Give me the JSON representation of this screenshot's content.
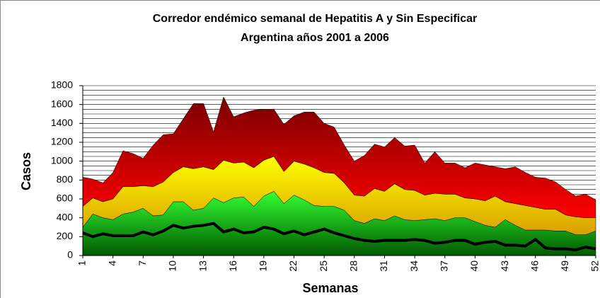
{
  "chart_data": {
    "type": "area",
    "title": "Corredor endémico semanal de Hepatitis A y Sin Especificar",
    "subtitle": "Argentina años 2001 a 2006",
    "y_label": "Casos",
    "x_label": "Semanas",
    "x": [
      1,
      2,
      3,
      4,
      5,
      6,
      7,
      8,
      9,
      10,
      11,
      12,
      13,
      14,
      15,
      16,
      17,
      18,
      19,
      20,
      21,
      22,
      23,
      24,
      25,
      26,
      27,
      28,
      29,
      30,
      31,
      32,
      33,
      34,
      35,
      36,
      37,
      38,
      39,
      40,
      41,
      42,
      43,
      44,
      45,
      46,
      47,
      48,
      49,
      50,
      51,
      52
    ],
    "xlim": [
      1,
      52
    ],
    "xticks": [
      1,
      4,
      7,
      10,
      13,
      16,
      19,
      22,
      25,
      28,
      31,
      34,
      37,
      40,
      43,
      46,
      49,
      52
    ],
    "ylim": [
      0,
      1800
    ],
    "yticks": [
      0,
      200,
      400,
      600,
      800,
      1000,
      1200,
      1400,
      1600,
      1800
    ],
    "grid": true,
    "grid_step": 50,
    "series": [
      {
        "type": "area",
        "colors": [
          "#005a00",
          "#33ff33"
        ],
        "values": [
          300,
          440,
          400,
          380,
          440,
          460,
          500,
          420,
          430,
          570,
          570,
          480,
          500,
          610,
          560,
          610,
          620,
          520,
          630,
          680,
          550,
          640,
          590,
          530,
          520,
          520,
          480,
          370,
          340,
          390,
          370,
          420,
          380,
          370,
          380,
          390,
          370,
          400,
          400,
          360,
          320,
          300,
          380,
          320,
          270,
          270,
          270,
          260,
          260,
          220,
          220,
          260
        ]
      },
      {
        "type": "area",
        "colors": [
          "#d9a000",
          "#ffff00"
        ],
        "values": [
          520,
          610,
          570,
          600,
          730,
          730,
          740,
          730,
          780,
          880,
          940,
          920,
          940,
          910,
          1010,
          980,
          990,
          930,
          1010,
          1050,
          890,
          1000,
          970,
          930,
          880,
          870,
          770,
          640,
          630,
          710,
          680,
          760,
          700,
          690,
          640,
          660,
          650,
          650,
          610,
          600,
          580,
          630,
          570,
          550,
          530,
          510,
          490,
          490,
          430,
          410,
          400,
          400
        ]
      },
      {
        "type": "area",
        "colors": [
          "#ff0000",
          "#7a0000"
        ],
        "values": [
          830,
          810,
          770,
          880,
          1110,
          1080,
          1030,
          1170,
          1280,
          1290,
          1450,
          1610,
          1610,
          1310,
          1680,
          1470,
          1510,
          1540,
          1550,
          1550,
          1390,
          1480,
          1520,
          1520,
          1400,
          1360,
          1170,
          1000,
          1060,
          1180,
          1150,
          1250,
          1160,
          1170,
          980,
          1100,
          980,
          980,
          930,
          980,
          960,
          940,
          920,
          940,
          880,
          830,
          820,
          780,
          700,
          630,
          650,
          590
        ]
      },
      {
        "type": "line",
        "color": "#000000",
        "values": [
          240,
          200,
          230,
          210,
          210,
          210,
          250,
          220,
          260,
          320,
          290,
          310,
          320,
          340,
          250,
          280,
          240,
          250,
          300,
          280,
          230,
          260,
          220,
          250,
          280,
          240,
          210,
          180,
          160,
          150,
          160,
          160,
          160,
          170,
          160,
          130,
          140,
          160,
          160,
          120,
          140,
          150,
          110,
          110,
          100,
          170,
          80,
          70,
          70,
          60,
          90,
          70
        ]
      }
    ]
  }
}
